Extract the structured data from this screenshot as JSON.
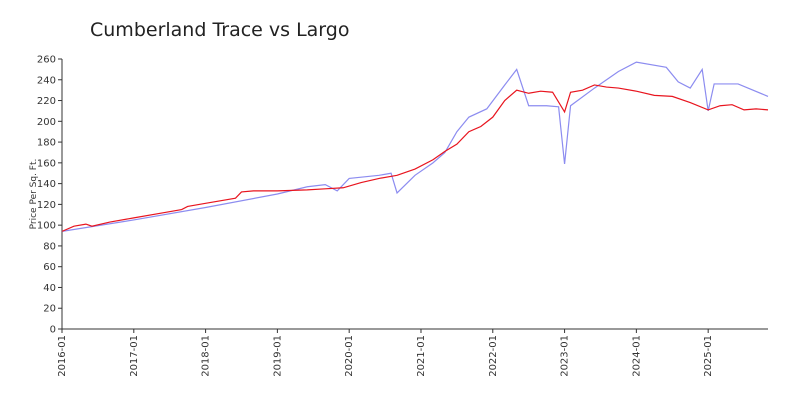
{
  "chart_data": {
    "type": "line",
    "title": "Cumberland Trace vs Largo",
    "y_label": "Price Per Sq. Ft.",
    "xlim": [
      "2016-01",
      "2025-11"
    ],
    "xticks": [
      "2016-01",
      "2017-01",
      "2018-01",
      "2019-01",
      "2020-01",
      "2021-01",
      "2022-01",
      "2023-01",
      "2024-01",
      "2025-01"
    ],
    "ylim": [
      0,
      260
    ],
    "yticks": [
      0,
      20,
      40,
      60,
      80,
      100,
      120,
      140,
      160,
      180,
      200,
      220,
      240,
      260
    ],
    "grid": false,
    "series": [
      {
        "color": "#8c8cf0",
        "x": [
          "2016-01",
          "2017-01",
          "2018-01",
          "2019-01",
          "2019-06",
          "2019-09",
          "2019-11",
          "2020-01",
          "2020-06",
          "2020-08",
          "2020-09",
          "2020-12",
          "2021-03",
          "2021-05",
          "2021-07",
          "2021-09",
          "2021-12",
          "2022-03",
          "2022-05",
          "2022-07",
          "2022-10",
          "2022-12",
          "2023-01",
          "2023-02",
          "2023-06",
          "2023-10",
          "2024-01",
          "2024-06",
          "2024-08",
          "2024-10",
          "2024-12",
          "2025-01",
          "2025-02",
          "2025-06",
          "2025-11"
        ],
        "values": [
          94,
          105,
          117,
          130,
          137,
          139,
          133,
          145,
          148,
          150,
          131,
          148,
          160,
          170,
          190,
          204,
          212,
          235,
          250,
          215,
          215,
          214,
          159,
          215,
          232,
          248,
          257,
          252,
          238,
          232,
          250,
          210,
          236,
          236,
          224
        ]
      },
      {
        "color": "#e8141e",
        "x": [
          "2016-01",
          "2016-03",
          "2016-05",
          "2016-06",
          "2016-09",
          "2017-01",
          "2017-06",
          "2017-09",
          "2017-10",
          "2018-01",
          "2018-06",
          "2018-07",
          "2018-09",
          "2019-01",
          "2019-06",
          "2019-09",
          "2019-12",
          "2020-03",
          "2020-06",
          "2020-09",
          "2020-12",
          "2021-03",
          "2021-05",
          "2021-07",
          "2021-09",
          "2021-11",
          "2022-01",
          "2022-03",
          "2022-05",
          "2022-07",
          "2022-09",
          "2022-11",
          "2023-01",
          "2023-02",
          "2023-04",
          "2023-06",
          "2023-08",
          "2023-10",
          "2024-01",
          "2024-04",
          "2024-07",
          "2024-10",
          "2025-01",
          "2025-03",
          "2025-05",
          "2025-07",
          "2025-09",
          "2025-11"
        ],
        "values": [
          94,
          99,
          101,
          99,
          103,
          107,
          112,
          115,
          118,
          121,
          126,
          132,
          133,
          133,
          134,
          135,
          136,
          141,
          145,
          148,
          154,
          163,
          171,
          178,
          190,
          195,
          204,
          220,
          230,
          227,
          229,
          228,
          209,
          228,
          230,
          235,
          233,
          232,
          229,
          225,
          224,
          218,
          211,
          215,
          216,
          211,
          212,
          211
        ]
      }
    ]
  }
}
